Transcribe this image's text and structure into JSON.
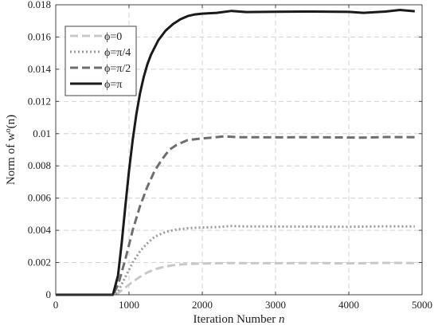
{
  "chart_data": {
    "type": "line",
    "xlabel": "Iteration Number",
    "xlabel_var": "n",
    "ylabel": "Norm of w",
    "ylabel_sup": "o",
    "ylabel_suffix": "(n)",
    "xlim": [
      0,
      5000
    ],
    "ylim": [
      0,
      0.018
    ],
    "x_ticks": [
      0,
      1000,
      2000,
      3000,
      4000,
      5000
    ],
    "x_tick_labels": [
      "0",
      "1000",
      "2000",
      "3000",
      "4000",
      "5000"
    ],
    "y_ticks": [
      0,
      0.002,
      0.004,
      0.006,
      0.008,
      0.01,
      0.012,
      0.014,
      0.016,
      0.018
    ],
    "y_tick_labels": [
      "0",
      "0.002",
      "0.004",
      "0.006",
      "0.008",
      "0.01",
      "0.012",
      "0.014",
      "0.016",
      "0.018"
    ],
    "grid": true,
    "legend_position": "top-left",
    "series": [
      {
        "name": "ϕ=0",
        "color": "#c8c8c8",
        "style": "dashed",
        "x": [
          0,
          780,
          850,
          950,
          1050,
          1150,
          1250,
          1350,
          1500,
          1650,
          1800,
          2000,
          2200,
          2400,
          2600,
          3000,
          3500,
          4000,
          4500,
          4900
        ],
        "y": [
          0,
          0,
          0.0001,
          0.00045,
          0.0008,
          0.00112,
          0.00138,
          0.00158,
          0.00176,
          0.00186,
          0.00191,
          0.00194,
          0.00196,
          0.00197,
          0.00196,
          0.00196,
          0.00197,
          0.00195,
          0.00198,
          0.00197
        ]
      },
      {
        "name": "ϕ=π/4",
        "color": "#9a9a9a",
        "style": "dotted",
        "x": [
          0,
          780,
          850,
          950,
          1050,
          1150,
          1250,
          1350,
          1500,
          1650,
          1800,
          2000,
          2200,
          2400,
          2600,
          3000,
          3500,
          4000,
          4500,
          4900
        ],
        "y": [
          0,
          0,
          0.0002,
          0.0011,
          0.002,
          0.0027,
          0.0032,
          0.0036,
          0.0039,
          0.00405,
          0.00413,
          0.00418,
          0.0042,
          0.00427,
          0.00424,
          0.00424,
          0.00423,
          0.00422,
          0.00425,
          0.00424
        ]
      },
      {
        "name": "ϕ=π/2",
        "color": "#6e6e6e",
        "style": "dashed",
        "x": [
          0,
          780,
          850,
          950,
          1050,
          1150,
          1250,
          1350,
          1450,
          1550,
          1650,
          1800,
          1950,
          2100,
          2300,
          2500,
          3000,
          3500,
          4000,
          4200,
          4500,
          4900
        ],
        "y": [
          0,
          0,
          0.0006,
          0.0022,
          0.004,
          0.0055,
          0.0067,
          0.0077,
          0.0084,
          0.009,
          0.0093,
          0.0096,
          0.00968,
          0.00974,
          0.00983,
          0.00978,
          0.00977,
          0.00978,
          0.00976,
          0.00975,
          0.00979,
          0.00978
        ]
      },
      {
        "name": "ϕ=π",
        "color": "#1a1a1a",
        "style": "solid",
        "x": [
          0,
          780,
          850,
          900,
          950,
          1000,
          1050,
          1100,
          1150,
          1200,
          1250,
          1300,
          1400,
          1500,
          1600,
          1700,
          1800,
          1900,
          2000,
          2200,
          2400,
          2600,
          3000,
          3500,
          4000,
          4200,
          4500,
          4700,
          4900
        ],
        "y": [
          0,
          0,
          0.0012,
          0.0032,
          0.0055,
          0.0077,
          0.0096,
          0.0112,
          0.0125,
          0.0135,
          0.0143,
          0.0149,
          0.0158,
          0.0164,
          0.0168,
          0.0171,
          0.0173,
          0.0174,
          0.01745,
          0.0175,
          0.01762,
          0.01755,
          0.01757,
          0.01758,
          0.01756,
          0.0175,
          0.01758,
          0.01768,
          0.0176
        ]
      }
    ]
  }
}
